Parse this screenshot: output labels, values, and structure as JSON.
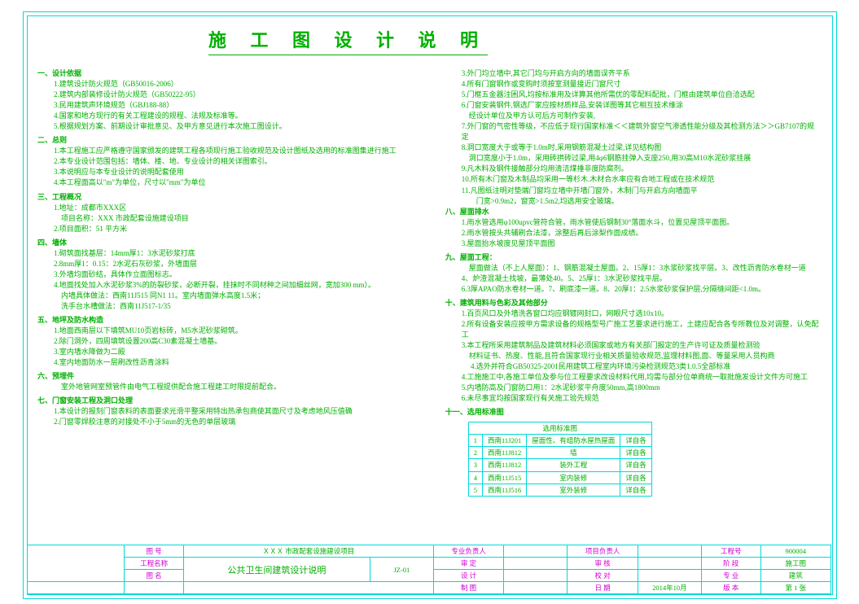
{
  "title": "施 工 图 设 计 说 明",
  "left": {
    "s1": {
      "hd": "一、设计依据",
      "i1": "1.建筑设计防火规范（GB50016-2006）",
      "i2": "2.建筑内部装修设计防火规范（GB50222-95）",
      "i3": "3.民用建筑声环境规范（GBJ188-88）",
      "i4": "4.国家和地方现行的有关工程建设的规程、法规及标准等。",
      "i5": "5.根据规划方案、前期设计审批意见、及甲方意见进行本次施工图设计。"
    },
    "s2": {
      "hd": "二、总则",
      "i1": "1.本工程施工应严格遵守国家颁发的建筑工程各项现行施工验收规范及设计图纸及选用的标准图集进行施工",
      "i2": "2.本专业设计范围包括：墙体、楼、地、专业设计的相关详图索引。",
      "i3": "3.本说明应与本专业设计的说明配套使用",
      "i4": "4.本工程面高以\"m\"为单位，尺寸以\"mm\"为单位"
    },
    "s3": {
      "hd": "三、工程概况",
      "i1": "1.地址：成都市XXX区",
      "i2": "　项目名称：XXX 市政配套设施建设项目",
      "i3": "2.项目面积：51 平方米"
    },
    "s4": {
      "hd": "四、墙体",
      "i1": "1.砌筑面找基层：14mm厚1：3水泥砂浆打底",
      "i2": "  2.8mm厚1：0.15：2水泥石灰砂浆，外墙面层",
      "i3": "3.外墙均面砂结，具体作立面图标志。",
      "i4": "4.地面找处加入水泥砂浆3%的防裂砂浆，必断开裂，挂抹时不同材种之间加细丝网，宽加300 mm）。",
      "i5": " ",
      "i6": "　内墙具体做法：西南11J515 同N1 11。室内墙面弹水高度1.5米；",
      "i7": "　洗手台水槽做法：西南11J517-1/35"
    },
    "s5": {
      "hd": "五、地坪及防水构造",
      "i1": "1.地面西南层以下填筑MU10页岩标砖，M5水泥砂浆砌筑。",
      "i2": "2.除门洞外，四周填筑设置200高C30素混凝土墙基。",
      "i3": "3.室内墙水降做为二殿",
      "i4": "4.室内地面防水一层刷改性沥青涂料"
    },
    "s6": {
      "hd": "六、预埋件",
      "i1": "　室外地管网室预管件由电气工程提供配合施工程建工时限提前配合。"
    },
    "s7": {
      "hd": "七、门窗安装工程及洞口处理",
      "i1": "1.本设计的报刻门窗表料的表面要求光滑平整采用特出热承包商使其面尺寸及考虑地风压值确",
      "i2": "2.门窗零焊胶注意的对接处不小于5mm的无色的单层玻璃"
    }
  },
  "right": {
    "r1": "3.外门均立墙中,其它门均与开启方向的墙面误齐平系",
    "r2": "4.所有门窗钢作或变购时须按室测量接近门窗尺寸",
    "r3": "5.门框五金器注困风,均按标准用及详算其他所需优的零配料配批，门框由建筑单位自洽选配",
    "r4": "6.门窗安装钢件,钢选厂家应按材质样品,安装详图等其它相互技术维涂",
    "r5": "　经设计单位及甲方认可后方可制作安装,",
    "r6": "7.外门窗的气密性等级，不应低于现行国家标准＜＜建筑外窗空气渗透性能分级及其检测方法＞＞GB7107的规定",
    "r7": "8.洞口宽度大于或等于1.0m时,采用钢筋混凝土过梁,详见结构图",
    "r8": "　洞口宽度小于1.0m，采用砖拱砖过梁,用4φ6钢筋挂弹入支座250,用30高M10水泥砂浆挂展",
    "r9": "9.凡木料及钢件接触部分均用清洁煤捶非度防腐剂。",
    "r10": "10.所有木门窗及木制品均采用一等杉木.木材合水率应有合地工程或在技术规范",
    "r11": "11.凡图纸注明对垫端门窗均立墙中开墙门窗外，木制门与开启方向墙面平",
    "r12": "　　门宽>0.9m2，窗宽>1.5m2,均选用安全玻璃。",
    "s8": {
      "hd": "八、屋面排水",
      "i1": "1.雨水管选用φ100upvc管符合管，雨水管使后钢制30°落面水斗，位置见屋顶平面图。",
      "i2": "2.雨水管按头共辅刷合法漆，涂整后再后涂梨作面成绩。",
      "i3": "3.屋面抬水坡度见屋顶平面图"
    },
    "s9": {
      "hd": "九、屋面工程：",
      "i1": "　屋面做法（不上人屋面）：1、钢筋混凝土屋面。2、15厚1：3水浆砂浆找平层。3、改性沥青防水卷材一道",
      "i2": "4、炉渣混凝土找坡，最薄处40。5、25厚1：3水泥砂浆找平层。",
      "i3": "  6.3厚APAO防水卷材一道。7、刷底漆一道。8、20厚1：2.5水浆砂浆保护层,分隔缝间距<1.0m。"
    },
    "s10": {
      "hd": "十、建筑用料与色彩及其他部分",
      "i1": "1.百页风口及外墙洗各窗口均应钢镀网封口，网眼尺寸选10x10。",
      "i2": "2.所有设备安装应按甲方需求设备的规格型号广施工艺要求进行施工，土建应配合各专所教位及对调整，认免配工",
      "i3": "3.本工程所采用建筑制品及建筑材料必须国家或地方有关部门报定的生产许可证及质量检测验",
      "i4": "　材料证书、热度、性能,且符合国家现行业相关质量验收规范,监理材料图,面、等量采用人员构商",
      "i5": "　 4.选外并符合GB50325-2001民用建筑工程室内环境污染检测规范3类1.0.5全部标准",
      "i6": "4.工施施工中,各施工单位及参与位工程要求改设材料代用,均需与部分位单商统一取批施发设计文件方可施工",
      "i7": "5.内墙防高及门窗防口用1：2水泥砂浆平舟度50mm,高1800mm",
      "i8": "6.未尽事宜均按国家现行有关施工验先规范"
    },
    "s11": {
      "hd": "十一、选用标准图"
    },
    "table": {
      "head": [
        "",
        "",
        "选用标准图",
        ""
      ],
      "rows": [
        [
          "1",
          "西南11J201",
          "屋面性、有组防水屋热屋面",
          "详自各"
        ],
        [
          "2",
          "西南11J812",
          "墙",
          "详自各"
        ],
        [
          "3",
          "西南11J812",
          "装外工程",
          "详自各"
        ],
        [
          "4",
          "西南11J515",
          "室内装修",
          "详自各"
        ],
        [
          "5",
          "西南11J516",
          "室外装修",
          "详自各"
        ]
      ]
    }
  },
  "tb": {
    "proj": "ＸＸＸ 市政配套设施建设项目",
    "name": "公共卫生间建筑设计说明",
    "dwg": "JZ-01",
    "date": "2014年10月",
    "num": "900004",
    "stage": "施工图",
    "disc": "建筑",
    "sheet": "第 1 张",
    "l1": "图 号",
    "l2": "工程名称",
    "l3": "图 名",
    "l4": "专业负责人",
    "l5": "项目负责人",
    "l6": "工程号",
    "l7": "审 定",
    "l8": "审 核",
    "l9": "阶 段",
    "l10": "设 计",
    "l11": "校 对",
    "l12": "专 业",
    "l13": "制 图",
    "l14": "日 期",
    "l15": "版 本"
  }
}
